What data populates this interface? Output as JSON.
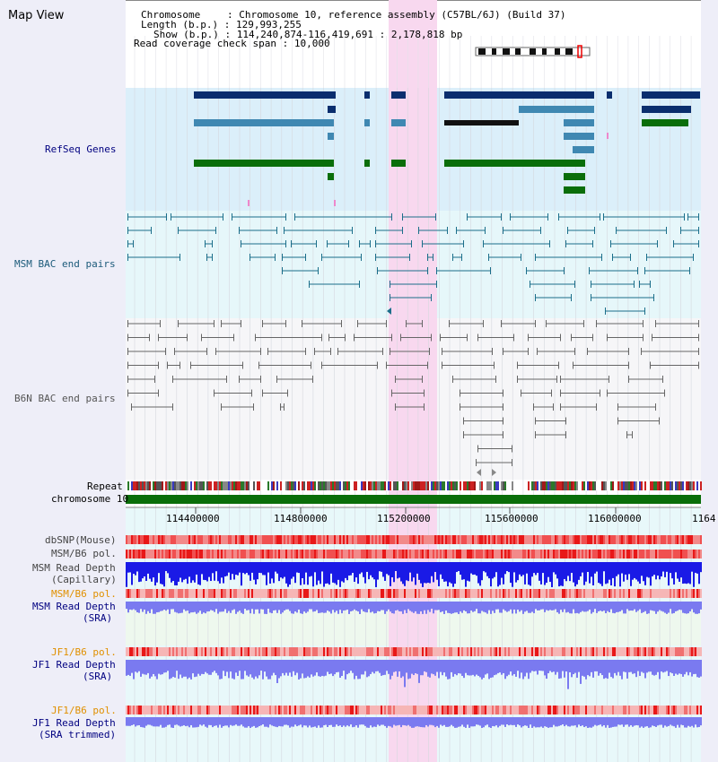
{
  "title": "Map View",
  "info": {
    "chromosome_label": "Chromosome",
    "chromosome_value": "Chromosome 10, reference assembly (C57BL/6J) (Build 37)",
    "length_label": "Length (b.p.)",
    "length_value": "129,993,255",
    "show_label": "Show (b.p.)",
    "show_value": "114,240,874-116,419,691 : 2,178,818 bp",
    "coverage_label": "Read coverage check span",
    "coverage_value": "10,000"
  },
  "tracks": {
    "refseq": "RefSeq Genes",
    "msm_bac": "MSM BAC end pairs",
    "b6n_bac": "B6N BAC end pairs",
    "repeat": "Repeat",
    "chromosome": "chromosome 10",
    "dbsnp": "dbSNP(Mouse)",
    "msm_b6_pol_1": "MSM/B6 pol.",
    "msm_read_depth_cap": "MSM Read Depth",
    "msm_read_depth_cap_sub": "(Capillary)",
    "msm_b6_pol_2": "MSM/B6 pol.",
    "msm_read_depth_sra": "MSM Read Depth",
    "msm_read_depth_sra_sub": "(SRA)",
    "jf1_b6_pol_1": "JF1/B6 pol.",
    "jf1_read_depth_sra": "JF1 Read Depth",
    "jf1_read_depth_sra_sub": "(SRA)",
    "jf1_b6_pol_2": "JF1/B6 pol.",
    "jf1_read_depth_trim": "JF1 Read Depth",
    "jf1_read_depth_trim_sub": "(SRA trimmed)"
  },
  "axis": {
    "ticks": [
      "114400000",
      "114800000",
      "115200000",
      "115600000",
      "116000000",
      "1164"
    ]
  },
  "colors": {
    "refseq_dark": "#0a2e6e",
    "refseq_mid": "#3f88b2",
    "refseq_green": "#0a6e0a",
    "msm_bac": "#1b6e8a",
    "b6n_bac": "#666666",
    "highlight": "#f8d8ef",
    "label_navy": "#000080",
    "label_orange": "#e09000",
    "depth_blue": "#1a1ae6",
    "depth_light": "#7a7af0"
  }
}
